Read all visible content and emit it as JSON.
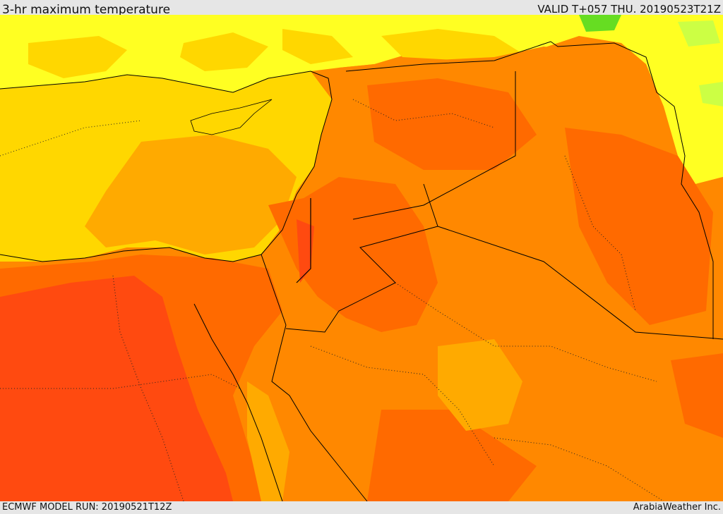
{
  "header": {
    "title": "3-hr maximum temperature",
    "valid": "VALID T+057 THU. 20190523T21Z"
  },
  "footer": {
    "model_run": "ECMWF MODEL RUN: 20190521T12Z",
    "credit": "ArabiaWeather Inc."
  },
  "colors": {
    "green": "#66dd22",
    "yellow_green": "#ccff44",
    "yellow": "#ffff22",
    "light_orange": "#ffd700",
    "orange": "#ffaa00",
    "dark_orange": "#ff8800",
    "red_orange": "#ff6a00",
    "red": "#ff4a10"
  }
}
